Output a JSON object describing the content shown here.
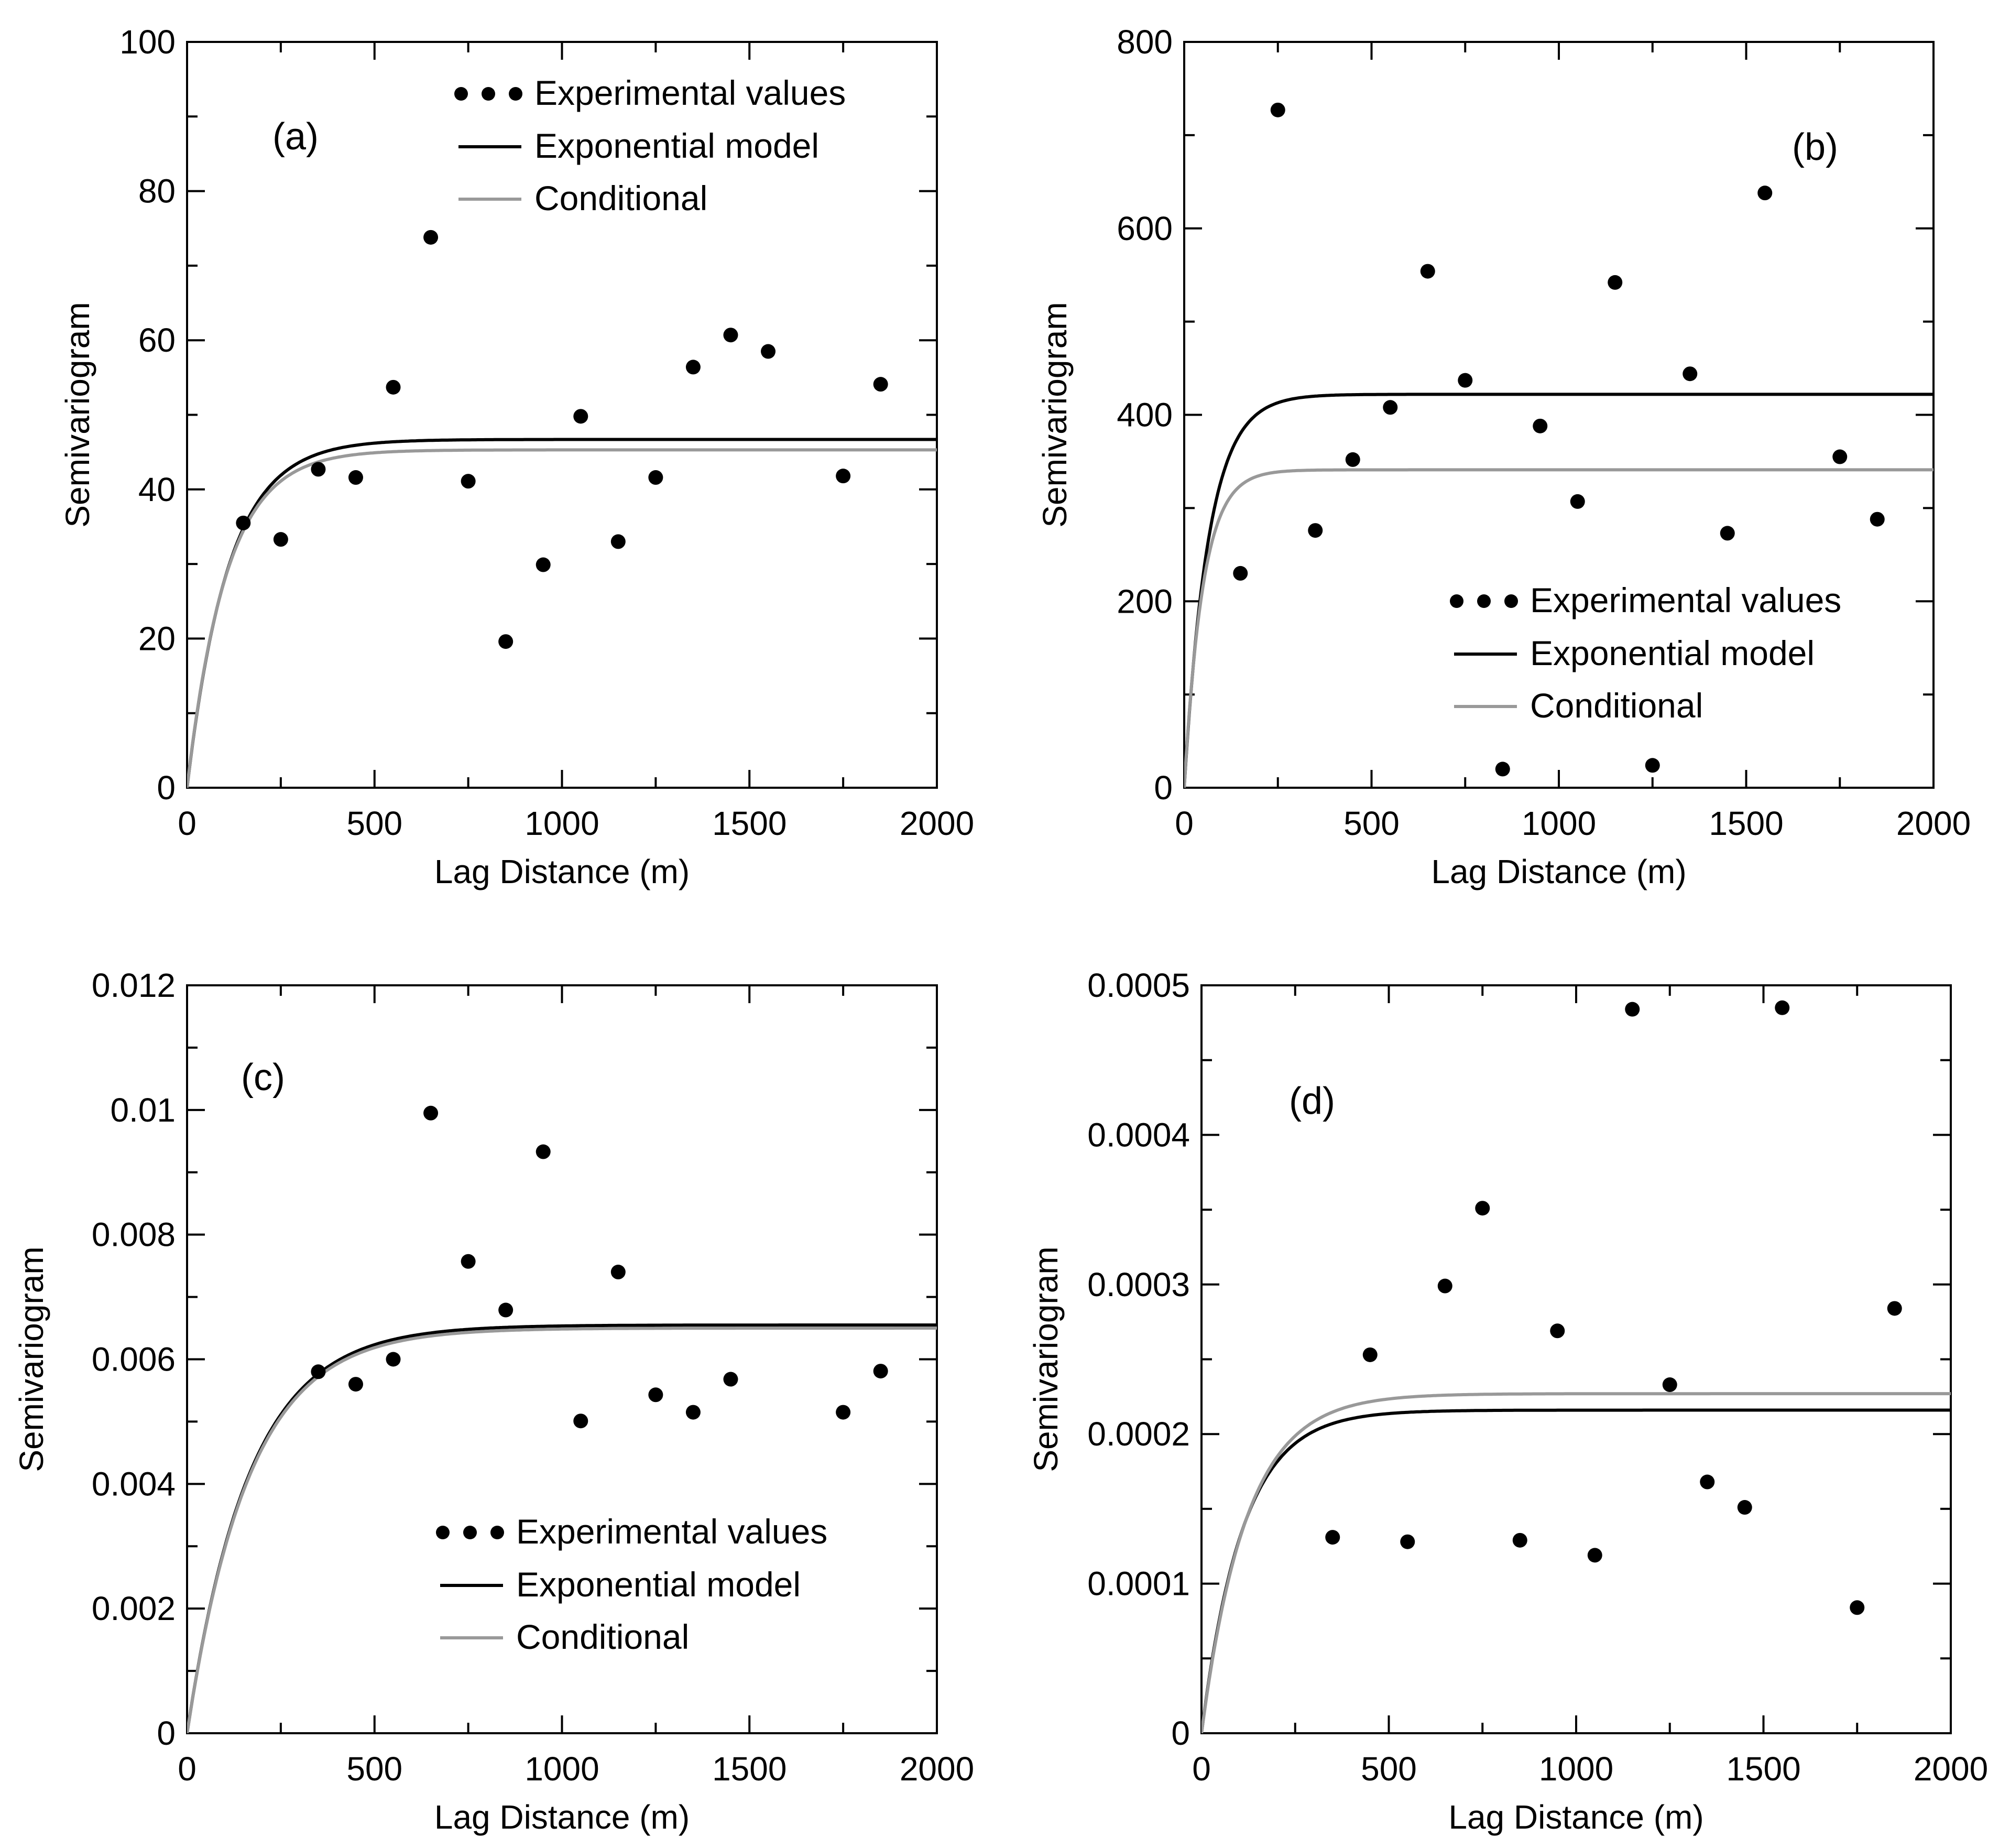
{
  "figure": {
    "legend_labels": {
      "experimental": "Experimental values",
      "exponential": "Exponential model",
      "conditional": "Conditional"
    },
    "colors": {
      "experimental": "#000000",
      "exponential": "#000000",
      "conditional": "#999999"
    }
  },
  "chart_data": [
    {
      "type": "scatter",
      "panel": "(a)",
      "xlabel": "Lag Distance (m)",
      "ylabel": "Semivariogram",
      "xlim": [
        0,
        2000
      ],
      "ylim": [
        0,
        100
      ],
      "xticks": [
        "0",
        "500",
        "1000",
        "1500",
        "2000"
      ],
      "yticks": [
        "0",
        "20",
        "40",
        "60",
        "80",
        "100"
      ],
      "legend_position": "top-right",
      "series": [
        {
          "name": "Experimental values",
          "kind": "points",
          "x": [
            150,
            250,
            350,
            450,
            550,
            650,
            750,
            850,
            950,
            1050,
            1150,
            1250,
            1350,
            1450,
            1550,
            1750,
            1850
          ],
          "y": [
            35.5,
            33.3,
            42.7,
            41.6,
            53.7,
            73.8,
            41.1,
            19.6,
            29.9,
            49.8,
            33.0,
            41.6,
            56.4,
            60.7,
            58.5,
            41.8,
            54.1
          ]
        },
        {
          "name": "Exponential model",
          "kind": "exponential",
          "sill": 46.7,
          "range": 110
        },
        {
          "name": "Conditional",
          "kind": "exponential",
          "sill": 45.3,
          "range": 105
        }
      ]
    },
    {
      "type": "scatter",
      "panel": "(b)",
      "xlabel": "Lag Distance (m)",
      "ylabel": "Semivariogram",
      "xlim": [
        0,
        2000
      ],
      "ylim": [
        0,
        800
      ],
      "xticks": [
        "0",
        "500",
        "1000",
        "1500",
        "2000"
      ],
      "yticks": [
        "0",
        "200",
        "400",
        "600",
        "800"
      ],
      "legend_position": "bottom-right",
      "series": [
        {
          "name": "Experimental values",
          "kind": "points",
          "x": [
            150,
            250,
            350,
            450,
            550,
            650,
            750,
            850,
            950,
            1050,
            1150,
            1250,
            1350,
            1450,
            1550,
            1750,
            1850
          ],
          "y": [
            230,
            727,
            276,
            352,
            408,
            554,
            437,
            20,
            388,
            307,
            542,
            24,
            444,
            273,
            638,
            355,
            288
          ]
        },
        {
          "name": "Exponential model",
          "kind": "exponential",
          "sill": 422,
          "range": 65
        },
        {
          "name": "Conditional",
          "kind": "exponential",
          "sill": 341,
          "range": 50
        }
      ]
    },
    {
      "type": "scatter",
      "panel": "(c)",
      "xlabel": "Lag Distance (m)",
      "ylabel": "Semivariogram",
      "xlim": [
        0,
        2000
      ],
      "ylim": [
        0,
        0.012
      ],
      "xticks": [
        "0",
        "500",
        "1000",
        "1500",
        "2000"
      ],
      "yticks": [
        "0",
        "0.002",
        "0.004",
        "0.006",
        "0.008",
        "0.01",
        "0.012"
      ],
      "legend_position": "bottom-right",
      "series": [
        {
          "name": "Experimental values",
          "kind": "points",
          "x": [
            350,
            450,
            550,
            650,
            750,
            850,
            950,
            1050,
            1150,
            1250,
            1350,
            1450,
            1750,
            1850
          ],
          "y": [
            0.0058,
            0.0056,
            0.006,
            0.00995,
            0.00757,
            0.00679,
            0.00933,
            0.00501,
            0.0074,
            0.00543,
            0.00515,
            0.00568,
            0.00515,
            0.00581
          ]
        },
        {
          "name": "Exponential model",
          "kind": "exponential",
          "sill": 0.00655,
          "range": 165
        },
        {
          "name": "Conditional",
          "kind": "exponential",
          "sill": 0.0065,
          "range": 165
        }
      ]
    },
    {
      "type": "scatter",
      "panel": "(d)",
      "xlabel": "Lag Distance (m)",
      "ylabel": "Semivariogram",
      "xlim": [
        0,
        2000
      ],
      "ylim": [
        0,
        0.0005
      ],
      "xticks": [
        "0",
        "500",
        "1000",
        "1500",
        "2000"
      ],
      "yticks": [
        "0",
        "0.0001",
        "0.0002",
        "0.0003",
        "0.0004",
        "0.0005"
      ],
      "legend_position": "none",
      "series": [
        {
          "name": "Experimental values",
          "kind": "points",
          "x": [
            350,
            450,
            550,
            650,
            750,
            850,
            950,
            1050,
            1150,
            1250,
            1350,
            1450,
            1550,
            1750,
            1850
          ],
          "y": [
            0.000131,
            0.000253,
            0.000128,
            0.000299,
            0.000351,
            0.000129,
            0.000269,
            0.000119,
            0.000484,
            0.000233,
            0.000168,
            0.000151,
            0.000485,
            8.4e-05,
            0.000284
          ]
        },
        {
          "name": "Exponential model",
          "kind": "exponential",
          "sill": 0.000216,
          "range": 110
        },
        {
          "name": "Conditional",
          "kind": "exponential",
          "sill": 0.000227,
          "range": 120
        }
      ]
    }
  ]
}
